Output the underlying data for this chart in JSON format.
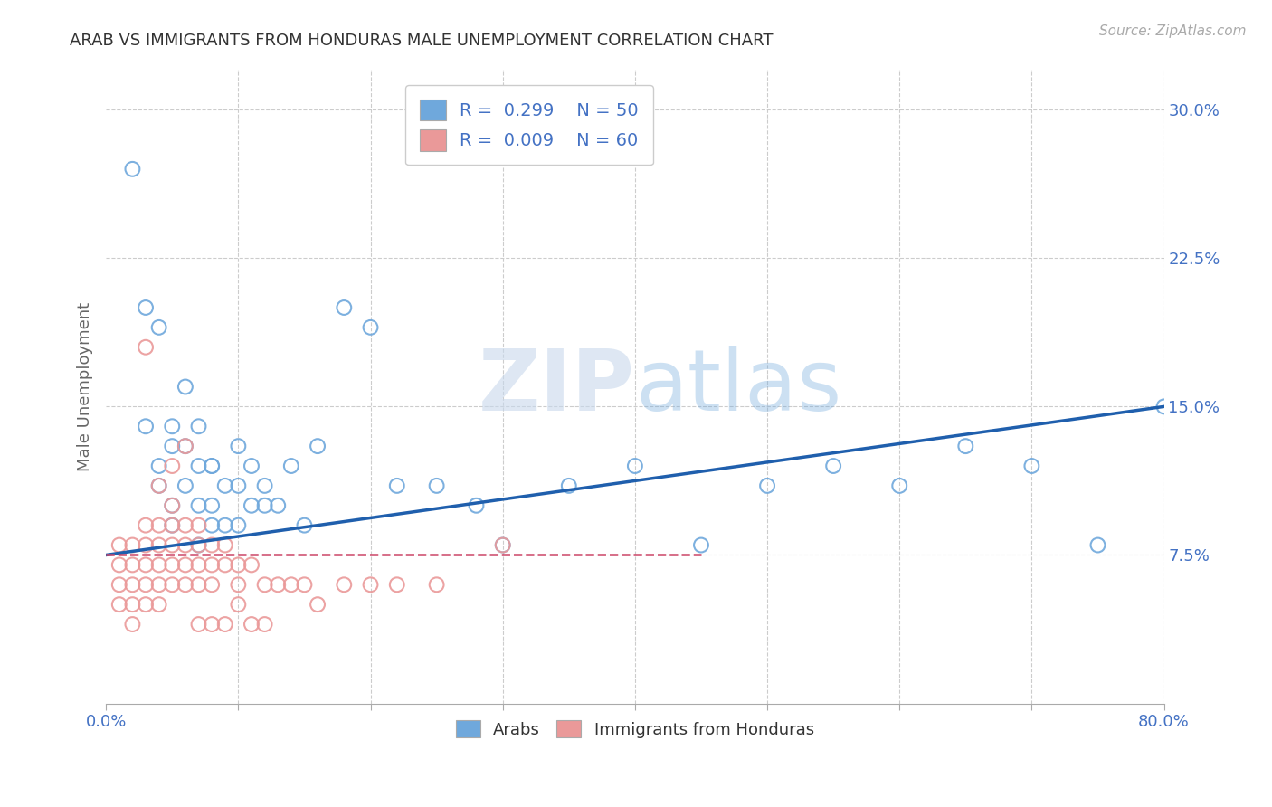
{
  "title": "ARAB VS IMMIGRANTS FROM HONDURAS MALE UNEMPLOYMENT CORRELATION CHART",
  "source": "Source: ZipAtlas.com",
  "ylabel": "Male Unemployment",
  "xlim": [
    0.0,
    0.8
  ],
  "ylim": [
    0.0,
    0.32
  ],
  "yticks": [
    0.075,
    0.15,
    0.225,
    0.3
  ],
  "ytick_labels": [
    "7.5%",
    "15.0%",
    "22.5%",
    "30.0%"
  ],
  "background_color": "#ffffff",
  "watermark_zip": "ZIP",
  "watermark_atlas": "atlas",
  "arab_color": "#6fa8dc",
  "honduras_color": "#ea9999",
  "arab_line_color": "#1f5fad",
  "honduras_line_color": "#cc4466",
  "legend_R_arab": "R =  0.299",
  "legend_N_arab": "N = 50",
  "legend_R_honduras": "R =  0.009",
  "legend_N_honduras": "N = 60",
  "arab_points_x": [
    0.02,
    0.03,
    0.04,
    0.04,
    0.05,
    0.05,
    0.05,
    0.06,
    0.06,
    0.07,
    0.07,
    0.07,
    0.08,
    0.08,
    0.08,
    0.09,
    0.09,
    0.1,
    0.1,
    0.11,
    0.11,
    0.12,
    0.13,
    0.14,
    0.15,
    0.16,
    0.18,
    0.2,
    0.22,
    0.25,
    0.28,
    0.3,
    0.35,
    0.4,
    0.45,
    0.5,
    0.55,
    0.6,
    0.65,
    0.7,
    0.75,
    0.8,
    0.03,
    0.04,
    0.05,
    0.06,
    0.07,
    0.08,
    0.1,
    0.12
  ],
  "arab_points_y": [
    0.27,
    0.14,
    0.12,
    0.11,
    0.13,
    0.1,
    0.09,
    0.13,
    0.11,
    0.12,
    0.1,
    0.08,
    0.12,
    0.1,
    0.09,
    0.11,
    0.09,
    0.13,
    0.09,
    0.12,
    0.1,
    0.11,
    0.1,
    0.12,
    0.09,
    0.13,
    0.2,
    0.19,
    0.11,
    0.11,
    0.1,
    0.08,
    0.11,
    0.12,
    0.08,
    0.11,
    0.12,
    0.11,
    0.13,
    0.12,
    0.08,
    0.15,
    0.2,
    0.19,
    0.14,
    0.16,
    0.14,
    0.12,
    0.11,
    0.1
  ],
  "honduras_points_x": [
    0.01,
    0.01,
    0.01,
    0.01,
    0.02,
    0.02,
    0.02,
    0.02,
    0.02,
    0.03,
    0.03,
    0.03,
    0.03,
    0.03,
    0.04,
    0.04,
    0.04,
    0.04,
    0.04,
    0.05,
    0.05,
    0.05,
    0.05,
    0.05,
    0.06,
    0.06,
    0.06,
    0.06,
    0.07,
    0.07,
    0.07,
    0.07,
    0.08,
    0.08,
    0.08,
    0.09,
    0.09,
    0.1,
    0.1,
    0.11,
    0.12,
    0.13,
    0.14,
    0.15,
    0.16,
    0.18,
    0.2,
    0.22,
    0.25,
    0.3,
    0.03,
    0.04,
    0.05,
    0.06,
    0.07,
    0.08,
    0.09,
    0.1,
    0.11,
    0.12
  ],
  "honduras_points_y": [
    0.08,
    0.07,
    0.06,
    0.05,
    0.08,
    0.07,
    0.06,
    0.05,
    0.04,
    0.09,
    0.08,
    0.07,
    0.06,
    0.05,
    0.09,
    0.08,
    0.07,
    0.06,
    0.05,
    0.1,
    0.09,
    0.08,
    0.07,
    0.06,
    0.09,
    0.08,
    0.07,
    0.06,
    0.09,
    0.08,
    0.07,
    0.06,
    0.08,
    0.07,
    0.06,
    0.08,
    0.07,
    0.07,
    0.06,
    0.07,
    0.06,
    0.06,
    0.06,
    0.06,
    0.05,
    0.06,
    0.06,
    0.06,
    0.06,
    0.08,
    0.18,
    0.11,
    0.12,
    0.13,
    0.04,
    0.04,
    0.04,
    0.05,
    0.04,
    0.04
  ],
  "arab_trend_x": [
    0.0,
    0.8
  ],
  "arab_trend_y": [
    0.075,
    0.15
  ],
  "honduras_trend_x": [
    0.0,
    0.45
  ],
  "honduras_trend_y": [
    0.075,
    0.075
  ],
  "grid_color": "#cccccc",
  "title_color": "#333333",
  "axis_label_color": "#666666",
  "tick_label_color": "#4472c4",
  "legend_text_color": "#4472c4"
}
